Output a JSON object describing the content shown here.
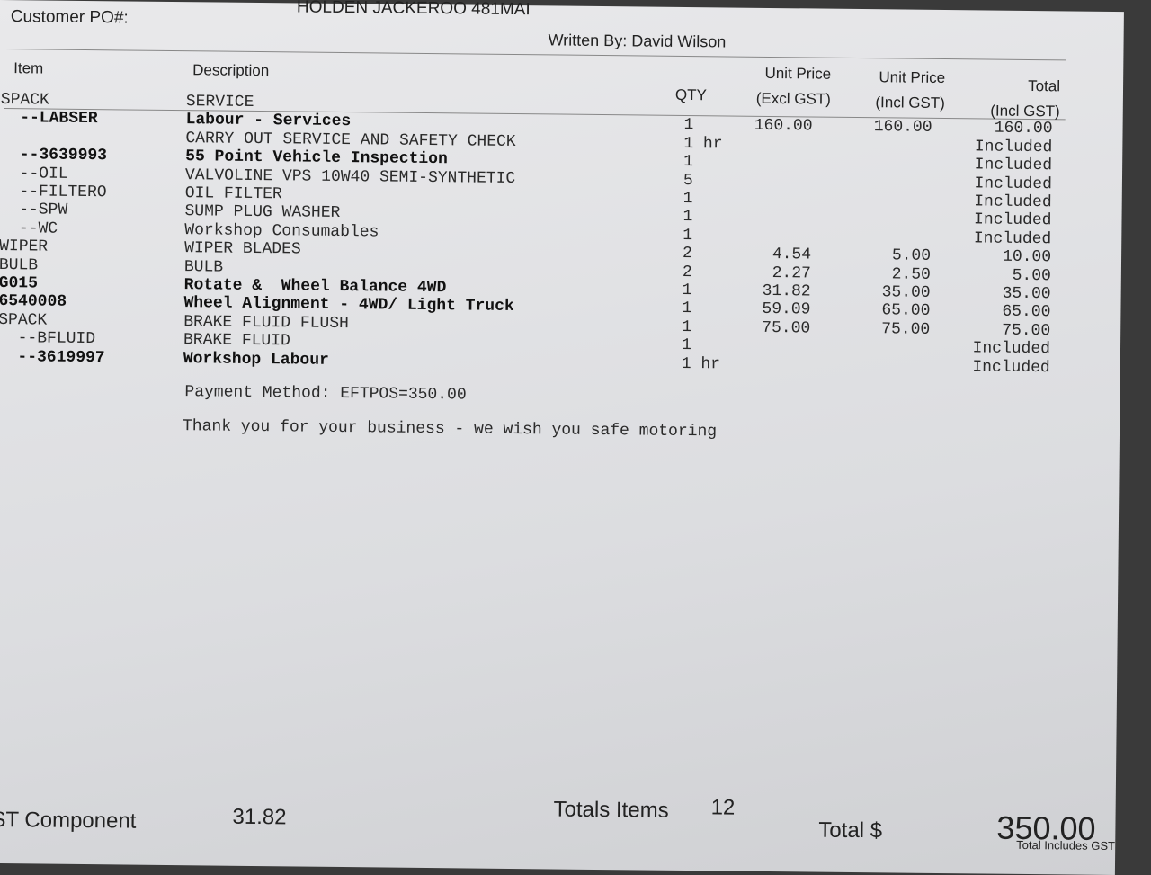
{
  "header": {
    "vehicle": "HOLDEN JACKEROO 481MAI",
    "customer_po": "Customer PO#:",
    "written_by": "Written By: David Wilson"
  },
  "table": {
    "columns": [
      [
        "Item"
      ],
      [
        "Description"
      ],
      [
        "QTY"
      ],
      [
        "Unit Price",
        "(Excl GST)"
      ],
      [
        "Unit Price",
        "(Incl GST)"
      ],
      [
        "Total",
        "(Incl GST)"
      ]
    ],
    "rows": [
      [
        "SPACK",
        "SERVICE",
        "",
        "",
        "",
        ""
      ],
      [
        "  --LABSER",
        "Labour - Services",
        "1",
        "160.00",
        "160.00",
        "160.00"
      ],
      [
        "",
        "CARRY OUT SERVICE AND SAFETY CHECK",
        "1 hr",
        "",
        "",
        "Included"
      ],
      [
        "  --3639993",
        "55 Point Vehicle Inspection",
        "1",
        "",
        "",
        "Included"
      ],
      [
        "  --OIL",
        "VALVOLINE VPS 10W40 SEMI-SYNTHETIC",
        "5",
        "",
        "",
        "Included"
      ],
      [
        "  --FILTERO",
        "OIL FILTER",
        "1",
        "",
        "",
        "Included"
      ],
      [
        "  --SPW",
        "SUMP PLUG WASHER",
        "1",
        "",
        "",
        "Included"
      ],
      [
        "  --WC",
        "Workshop Consumables",
        "1",
        "",
        "",
        "Included"
      ],
      [
        "WIPER",
        "WIPER BLADES",
        "2",
        "4.54",
        "5.00",
        "10.00"
      ],
      [
        "BULB",
        "BULB",
        "2",
        "2.27",
        "2.50",
        "5.00"
      ],
      [
        "G015",
        "Rotate &  Wheel Balance 4WD",
        "1",
        "31.82",
        "35.00",
        "35.00"
      ],
      [
        "6540008",
        "Wheel Alignment - 4WD/ Light Truck",
        "1",
        "59.09",
        "65.00",
        "65.00"
      ],
      [
        "SPACK",
        "BRAKE FLUID FLUSH",
        "1",
        "75.00",
        "75.00",
        "75.00"
      ],
      [
        "  --BFLUID",
        "BRAKE FLUID",
        "1",
        "",
        "",
        "Included"
      ],
      [
        "  --3619997",
        "Workshop Labour",
        "1 hr",
        "",
        "",
        "Included"
      ]
    ],
    "bold_rows": [
      1,
      3,
      10,
      11,
      14
    ]
  },
  "notes": [
    "Payment Method: EFTPOS=350.00",
    "Thank you for your business - we wish you safe motoring"
  ],
  "footer": {
    "gst_label": "ST Component",
    "gst_value": "31.82",
    "items_label": "Totals Items",
    "items_value": "12",
    "total_label": "Total $",
    "total_value": "350.00",
    "total_note": "Total Includes GST"
  }
}
